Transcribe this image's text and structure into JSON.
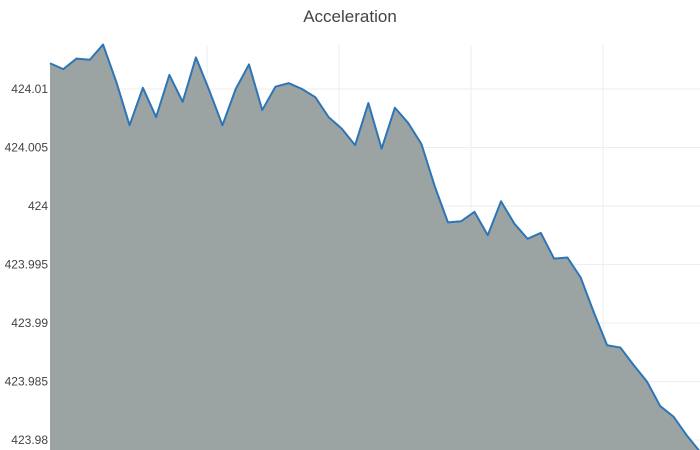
{
  "chart_data": {
    "type": "area",
    "title": "Acceleration",
    "xlabel": "",
    "ylabel": "",
    "ylim": [
      423.98,
      424.0138
    ],
    "y_ticks": [
      423.98,
      423.985,
      423.99,
      423.995,
      424,
      424.005,
      424.01
    ],
    "y_tick_labels": [
      "423.98",
      "423.985",
      "423.99",
      "423.995",
      "424",
      "424.005",
      "424.01"
    ],
    "grid": true,
    "fill_color": "#9ba3a3",
    "line_color": "#2e75b6",
    "series": [
      {
        "x": [
          0,
          1,
          2,
          3,
          4,
          5,
          6,
          7,
          8,
          9,
          10,
          11,
          12,
          13,
          14,
          15,
          16,
          17,
          18,
          19,
          20,
          21,
          22,
          23,
          24,
          25,
          26,
          27,
          28,
          29,
          30,
          31,
          32,
          33,
          34,
          35,
          36,
          37,
          38,
          39,
          40,
          41,
          42,
          43,
          44,
          45,
          46,
          47,
          48,
          49
        ],
        "values": [
          424.0122,
          424.0117,
          424.0126,
          424.0125,
          424.0138,
          424.0106,
          424.0069,
          424.0101,
          424.0076,
          424.0112,
          424.0089,
          424.0127,
          424.0099,
          424.0069,
          424.01,
          424.0121,
          424.0082,
          424.0102,
          424.0105,
          424.01,
          424.0093,
          424.0076,
          424.0066,
          424.0052,
          424.0088,
          424.0049,
          424.0084,
          424.0071,
          424.0053,
          424.0017,
          423.9986,
          423.9987,
          423.9995,
          423.9975,
          424.0004,
          423.9985,
          423.9972,
          423.9977,
          423.9955,
          423.9956,
          423.9939,
          423.9909,
          423.9881,
          423.9879,
          423.9864,
          423.985,
          423.9829,
          423.982,
          423.9804,
          423.979
        ]
      }
    ]
  }
}
